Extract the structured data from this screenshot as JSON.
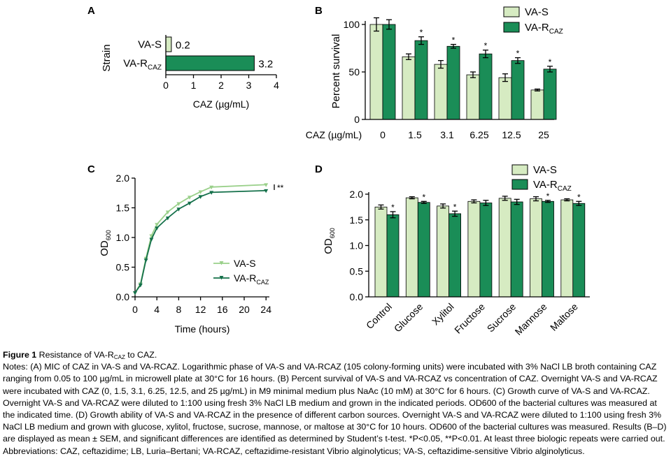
{
  "colors": {
    "va_s": "#d6ebc2",
    "va_r": "#1a8d57",
    "line_s": "#9ad08a",
    "line_r": "#14704a"
  },
  "panels": {
    "a": {
      "label": "A",
      "ylabel": "Strain",
      "xlabel": "CAZ (µg/mL)"
    },
    "b": {
      "label": "B",
      "ylabel": "Percent survival",
      "xlabel": "CAZ (µg/mL)",
      "legend": [
        "VA-S"
      ],
      "legend_r": {
        "base": "VA-R",
        "sub": "CAZ"
      }
    },
    "c": {
      "label": "C",
      "ylabel_base": "OD",
      "ylabel_sub": "600",
      "xlabel": "Time (hours)",
      "annotation": "**",
      "legend": [
        "VA-S"
      ],
      "legend_r": {
        "base": "VA-R",
        "sub": "CAZ"
      }
    },
    "d": {
      "label": "D",
      "ylabel_base": "OD",
      "ylabel_sub": "600",
      "legend": [
        "VA-S"
      ],
      "legend_r": {
        "base": "VA-R",
        "sub": "CAZ"
      }
    }
  },
  "chart_data": [
    {
      "panel": "A",
      "type": "bar",
      "orientation": "horizontal",
      "categories": [
        {
          "base": "VA-S",
          "sub": ""
        },
        {
          "base": "VA-R",
          "sub": "CAZ"
        }
      ],
      "values": [
        0.2,
        3.2
      ],
      "value_labels": [
        "0.2",
        "3.2"
      ],
      "xticks": [
        "0",
        "1",
        "2",
        "3",
        "4"
      ],
      "xlim": [
        0,
        4
      ],
      "ylabel": "Strain",
      "xlabel": "CAZ (µg/mL)"
    },
    {
      "panel": "B",
      "type": "bar",
      "categories": [
        "0",
        "1.5",
        "3.1",
        "6.25",
        "12.5",
        "25"
      ],
      "series": [
        {
          "name": "VA-S",
          "values": [
            100,
            66,
            58,
            47,
            44,
            31
          ],
          "errors": [
            7,
            3,
            4,
            3,
            4,
            1
          ]
        },
        {
          "name": "VA-RCAZ",
          "values": [
            100,
            83,
            77,
            69,
            62,
            53
          ],
          "errors": [
            5,
            4,
            2,
            4,
            3,
            3
          ],
          "significant": [
            false,
            true,
            true,
            true,
            true,
            true
          ]
        }
      ],
      "sig_mark": "*",
      "yticks": [
        "0",
        "50",
        "100"
      ],
      "ylim": [
        0,
        105
      ],
      "ylabel": "Percent survival",
      "xlabel": "CAZ (µg/mL)"
    },
    {
      "panel": "C",
      "type": "line",
      "x": [
        0,
        1,
        2,
        3,
        4,
        6,
        8,
        10,
        12,
        14,
        24
      ],
      "series": [
        {
          "name": "VA-S",
          "values": [
            0.07,
            0.22,
            0.65,
            1.03,
            1.22,
            1.43,
            1.57,
            1.68,
            1.77,
            1.85,
            1.89
          ]
        },
        {
          "name": "VA-RCAZ",
          "values": [
            0.07,
            0.2,
            0.62,
            0.97,
            1.16,
            1.33,
            1.48,
            1.58,
            1.69,
            1.76,
            1.79
          ]
        }
      ],
      "xticks": [
        "0",
        "4",
        "8",
        "12",
        "16",
        "20",
        "24"
      ],
      "xlim": [
        0,
        24
      ],
      "yticks": [
        "0.0",
        "0.5",
        "1.0",
        "1.5",
        "2.0"
      ],
      "ylim": [
        0,
        2
      ],
      "xlabel": "Time (hours)",
      "ylabel": "OD600",
      "annotation": "**"
    },
    {
      "panel": "D",
      "type": "bar",
      "categories": [
        "Control",
        "Glucose",
        "Xylitol",
        "Fructose",
        "Sucrose",
        "Mannose",
        "Maltose"
      ],
      "series": [
        {
          "name": "VA-S",
          "values": [
            1.75,
            1.93,
            1.77,
            1.86,
            1.92,
            1.91,
            1.89
          ],
          "errors": [
            0.04,
            0.02,
            0.04,
            0.03,
            0.04,
            0.04,
            0.02
          ]
        },
        {
          "name": "VA-RCAZ",
          "values": [
            1.6,
            1.84,
            1.62,
            1.83,
            1.85,
            1.86,
            1.82
          ],
          "errors": [
            0.06,
            0.02,
            0.05,
            0.05,
            0.05,
            0.02,
            0.04
          ],
          "significant": [
            true,
            true,
            true,
            false,
            false,
            true,
            true
          ]
        }
      ],
      "sig_mark": "*",
      "yticks": [
        "0.0",
        "0.5",
        "1.0",
        "1.5",
        "2.0"
      ],
      "ylim": [
        0,
        2.2
      ],
      "ylabel": "OD600"
    }
  ],
  "caption": {
    "title_bold": "Figure 1 ",
    "title_pre": "Resistance of VA-R",
    "sub_caz": "CAZ",
    "title_post": " to CAZ.",
    "notes": "Notes: (A) MIC of CAZ in VA-S and VA-RCAZ. Logarithmic phase of VA-S and VA-RCAZ (105 colony-forming units) were incubated with 3% NaCl LB broth containing CAZ ranging from 0.05 to 100 µg/mL in microwell plate at 30°C for 16 hours. (B) Percent survival of VA-S and VA-RCAZ vs concentration of CAZ. Overnight VA-S and VA-RCAZ were incubated with CAZ (0, 1.5, 3.1, 6.25, 12.5, and 25 µg/mL) in M9 minimal medium plus NaAc (10 mM) at 30°C for 6 hours. (C) Growth curve of VA-S and VA-RCAZ. Overnight VA-S and VA-RCAZ were diluted to 1:100 using fresh 3% NaCl LB medium and grown in the indicated periods. OD600 of the bacterial cultures was measured at the indicated time. (D) Growth ability of VA-S and VA-RCAZ in the presence of different carbon sources. Overnight VA-S and VA-RCAZ were diluted to 1:100 using fresh 3% NaCl LB medium and grown with glucose, xylitol, fructose, sucrose, mannose, or maltose at 30°C for 10 hours. OD600 of the bacterial cultures was measured. Results (B–D) are displayed as mean ± SEM, and significant differences are identified as determined by Student’s t-test. *P<0.05, **P<0.01. At least three biologic repeats were carried out.",
    "abbreviations": "Abbreviations: CAZ, ceftazidime; LB, Luria–Bertani; VA-RCAZ, ceftazidime-resistant Vibrio alginolyticus; VA-S, ceftazidime-sensitive Vibrio alginolyticus."
  }
}
